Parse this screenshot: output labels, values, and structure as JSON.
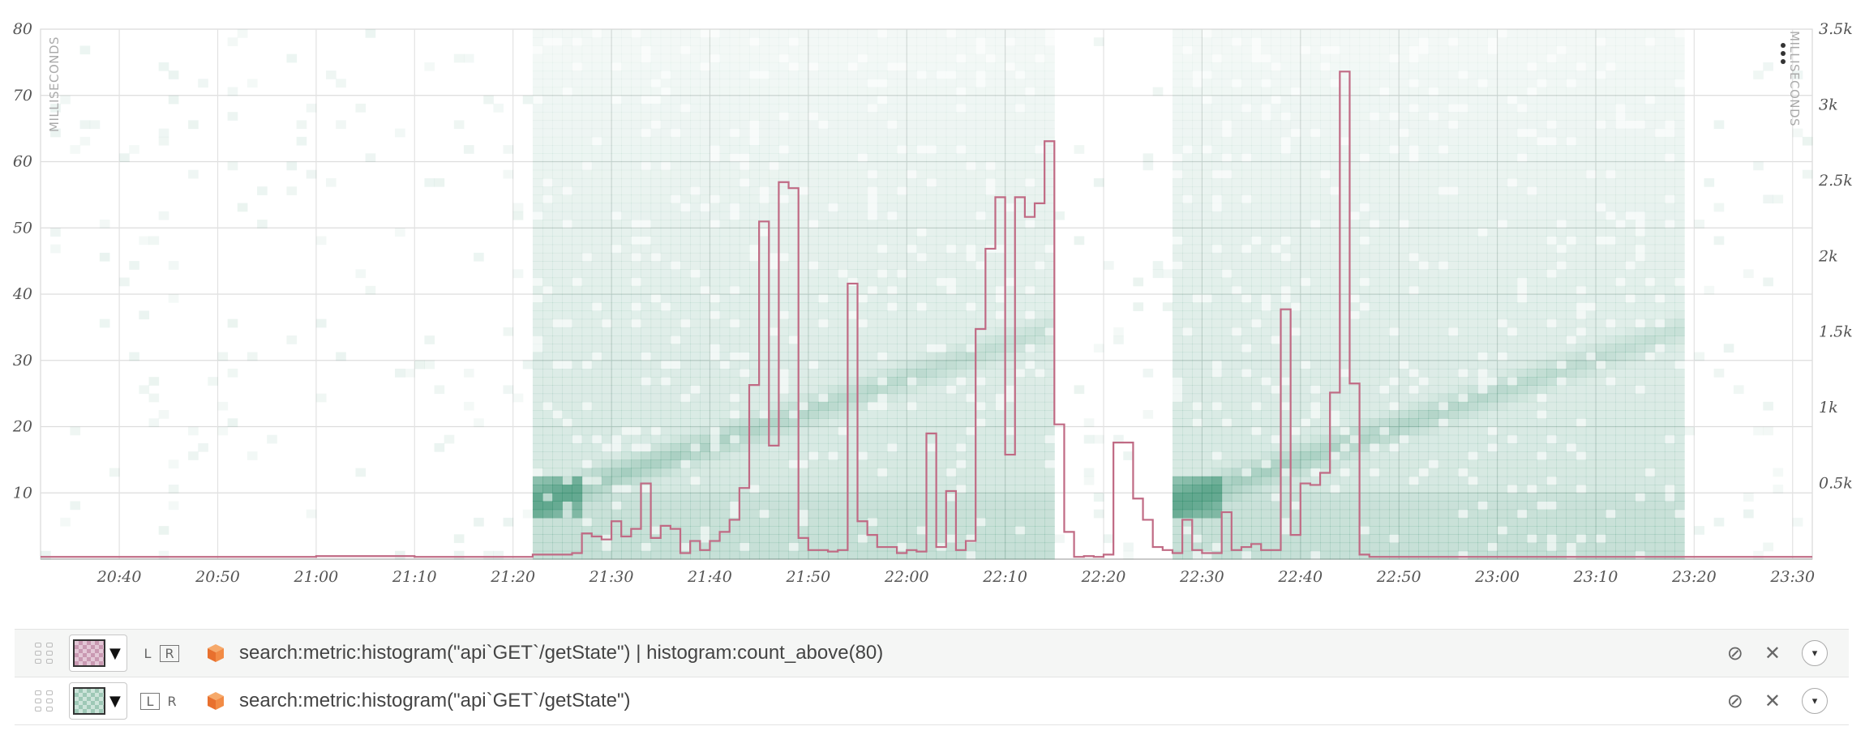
{
  "chart_data": {
    "type": "heatmap+line",
    "x_ticks": [
      "20:40",
      "20:50",
      "21:00",
      "21:10",
      "21:20",
      "21:30",
      "21:40",
      "21:50",
      "22:00",
      "22:10",
      "22:20",
      "22:30",
      "22:40",
      "22:50",
      "23:00",
      "23:10",
      "23:20",
      "23:30"
    ],
    "y_left": {
      "label": "MILLISECONDS",
      "ticks": [
        "80",
        "70",
        "60",
        "50",
        "40",
        "30",
        "20",
        "10"
      ],
      "range": [
        0,
        80
      ]
    },
    "y_right": {
      "label": "MILLISECONDS",
      "ticks": [
        "3.5k",
        "3k",
        "2.5k",
        "2k",
        "1.5k",
        "1k",
        "0.5k"
      ],
      "range": [
        0,
        3500
      ]
    },
    "x_range_minutes": [
      1232,
      1412
    ],
    "heatmap_active_windows": [
      [
        1282,
        1334
      ],
      [
        1347,
        1398
      ]
    ],
    "heatmap_color": "#2e8b6a",
    "line_color": "#c06a84",
    "series": [
      {
        "name": "search:metric:histogram(\"api`GET`/getState\") | histogram:count_above(80)",
        "axis": "right",
        "x": [
          1232,
          1240,
          1250,
          1260,
          1270,
          1280,
          1282,
          1286,
          1287,
          1288,
          1289,
          1290,
          1291,
          1292,
          1293,
          1294,
          1295,
          1296,
          1297,
          1298,
          1299,
          1300,
          1301,
          1302,
          1303,
          1304,
          1305,
          1306,
          1307,
          1308,
          1309,
          1310,
          1311,
          1312,
          1313,
          1314,
          1315,
          1316,
          1317,
          1318,
          1319,
          1320,
          1321,
          1322,
          1323,
          1324,
          1325,
          1326,
          1327,
          1328,
          1329,
          1330,
          1331,
          1332,
          1333,
          1334,
          1335,
          1336,
          1337,
          1338,
          1339,
          1340,
          1341,
          1342,
          1343,
          1344,
          1345,
          1346,
          1347,
          1348,
          1349,
          1350,
          1351,
          1352,
          1353,
          1354,
          1355,
          1356,
          1357,
          1358,
          1359,
          1360,
          1361,
          1362,
          1363,
          1364,
          1365,
          1366,
          1367,
          1368,
          1369,
          1370,
          1371,
          1372,
          1373,
          1374,
          1375,
          1376,
          1377,
          1378,
          1379,
          1380,
          1390,
          1400,
          1410
        ],
        "y": [
          15,
          15,
          15,
          20,
          15,
          15,
          30,
          40,
          170,
          150,
          130,
          250,
          150,
          200,
          500,
          140,
          220,
          200,
          40,
          120,
          60,
          120,
          180,
          260,
          470,
          1150,
          2230,
          750,
          2490,
          2450,
          140,
          60,
          60,
          50,
          60,
          1820,
          250,
          160,
          80,
          80,
          40,
          60,
          50,
          830,
          80,
          450,
          60,
          120,
          1520,
          2050,
          2390,
          690,
          2390,
          2260,
          2350,
          2760,
          890,
          180,
          15,
          20,
          15,
          30,
          770,
          770,
          400,
          260,
          80,
          60,
          40,
          260,
          60,
          40,
          40,
          310,
          60,
          80,
          100,
          60,
          60,
          1650,
          160,
          500,
          490,
          570,
          1100,
          3220,
          1160,
          30,
          15,
          15,
          15,
          15,
          15,
          15,
          15,
          15,
          15,
          15,
          15,
          15,
          15,
          15,
          15,
          15,
          15
        ]
      },
      {
        "name": "search:metric:histogram(\"api`GET`/getState\")",
        "axis": "left",
        "type": "heatmap"
      }
    ]
  },
  "legend": {
    "rows": [
      {
        "axis_l": "L",
        "axis_r": "R",
        "selected_axis": "R",
        "swatch": "#c999b2"
      },
      {
        "axis_l": "L",
        "axis_r": "R",
        "selected_axis": "L",
        "swatch": "#9ec8b6"
      }
    ]
  },
  "icons": {
    "handle": "drag-handle-icon",
    "source": "datasource-cube-icon",
    "disable": "disable-icon",
    "remove": "close-icon",
    "menu": "chevron-down-icon",
    "chart_menu": "more-vertical-icon"
  },
  "actions": {
    "disable": "⊘",
    "remove": "✕",
    "menu": "▾"
  }
}
